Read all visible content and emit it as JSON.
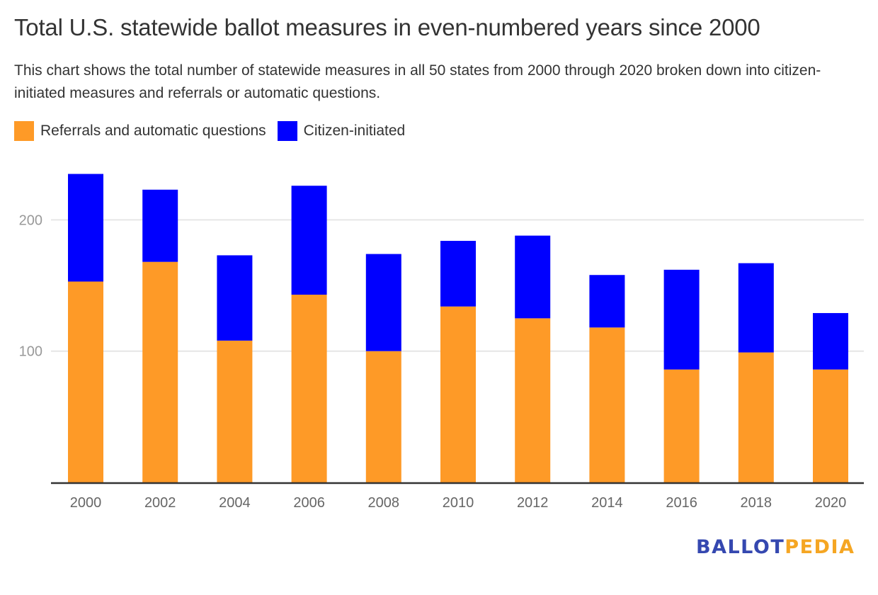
{
  "header": {
    "title": "Total U.S. statewide ballot measures in even-numbered years since 2000",
    "subtitle": "This chart shows the total number of statewide measures in all 50 states from 2000 through 2020 broken down into citizen-initiated measures and referrals or automatic questions."
  },
  "legend": {
    "items": [
      {
        "label": "Referrals and automatic questions",
        "color": "#fe9a27"
      },
      {
        "label": "Citizen-initiated",
        "color": "#0000ff"
      }
    ]
  },
  "logo": {
    "part1": "BALLOT",
    "part2": "PEDIA"
  },
  "chart_data": {
    "type": "bar",
    "stacked": true,
    "title": "Total U.S. statewide ballot measures in even-numbered years since 2000",
    "xlabel": "",
    "ylabel": "",
    "categories": [
      "2000",
      "2002",
      "2004",
      "2006",
      "2008",
      "2010",
      "2012",
      "2014",
      "2016",
      "2018",
      "2020"
    ],
    "series": [
      {
        "name": "Referrals and automatic questions",
        "color": "#fe9a27",
        "values": [
          153,
          168,
          108,
          143,
          100,
          134,
          125,
          118,
          86,
          99,
          86
        ]
      },
      {
        "name": "Citizen-initiated",
        "color": "#0000ff",
        "values": [
          82,
          55,
          65,
          83,
          74,
          50,
          63,
          40,
          76,
          68,
          43
        ]
      }
    ],
    "totals": [
      235,
      223,
      173,
      226,
      174,
      184,
      188,
      158,
      162,
      167,
      129
    ],
    "yticks": [
      100,
      200
    ],
    "ylim": [
      0,
      240
    ],
    "grid": true,
    "legend_position": "top-left"
  }
}
